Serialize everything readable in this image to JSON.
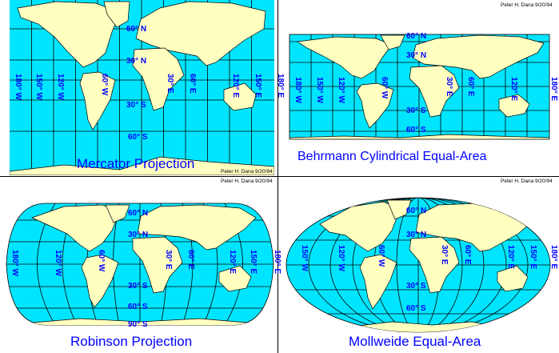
{
  "colors": {
    "ocean": "#00e5ff",
    "land": "#ffffc0",
    "label": "#0000ff",
    "grid": "#000000"
  },
  "panels": [
    {
      "id": "mercator",
      "title": "Mercator Projection",
      "credit_top": "",
      "credit_bottom": "Peter H. Dana 9/20/94",
      "lat_labels": [
        "60° N",
        "30° N",
        "30° S",
        "60° S"
      ],
      "lon_labels": [
        "180° W",
        "150° W",
        "120° W",
        "60° W",
        "30° E",
        "60° E",
        "120° E",
        "150° E",
        "180° E"
      ]
    },
    {
      "id": "behrmann",
      "title": "Behrmann Cylindrical Equal-Area",
      "credit_top": "Peter H. Dana 9/20/94",
      "credit_bottom": "",
      "lat_labels": [
        "60° N",
        "30° N",
        "30° S",
        "60° S"
      ],
      "lon_labels": [
        "180° W",
        "150° W",
        "120° W",
        "60° W",
        "30° E",
        "60° E",
        "120° E",
        "180° E"
      ]
    },
    {
      "id": "robinson",
      "title": "Robinson Projection",
      "credit_top": "Peter H. Dana 9/20/94",
      "credit_bottom": "",
      "lat_labels": [
        "60° N",
        "30° N",
        "30° S",
        "60° S",
        "90° S"
      ],
      "lon_labels": [
        "180° W",
        "120° W",
        "60° W",
        "30° E",
        "60° E",
        "120° E",
        "150° E",
        "180° E"
      ]
    },
    {
      "id": "mollweide",
      "title": "Mollweide Equal-Area",
      "credit_top": "Peter H. Dana 9/20/94",
      "credit_bottom": "",
      "lat_labels": [
        "60° N",
        "30° N",
        "30° S",
        "60° S"
      ],
      "lon_labels": [
        "150° W",
        "120° W",
        "60° W",
        "30° E",
        "60° E",
        "120° E",
        "150° E",
        "180° E"
      ]
    }
  ]
}
